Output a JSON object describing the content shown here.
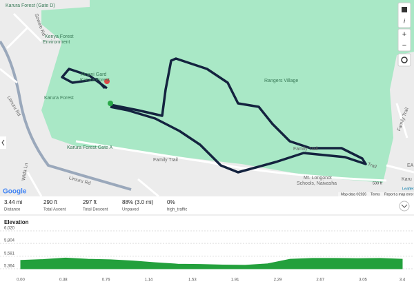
{
  "map": {
    "labels": [
      "Karura Forest (Gate D)",
      "Kenya Forest",
      "Environment",
      "Amani Gard",
      "Karura Forest",
      "Karura Forest",
      "Rangers Village",
      "Karura Forest Gate A",
      "Family Trail",
      "Family Trail",
      "Family Trail",
      "Mt. Longonot",
      "Schools, Naivasha",
      "Limuru Rd",
      "Limuru Rd",
      "Sowelo Rd",
      "Wida Ln",
      "Trail",
      "EA",
      "Karu"
    ],
    "controls": [
      "i",
      "+",
      "−"
    ],
    "google": "Google",
    "attribution": [
      "Map data ©2026",
      "Terms",
      "Report a map error"
    ],
    "scale": "500 ft",
    "leaflet": "Leaflet"
  },
  "stats": [
    {
      "value": "3.44 mi",
      "label": "Distance"
    },
    {
      "value": "290 ft",
      "label": "Total Ascent"
    },
    {
      "value": "297 ft",
      "label": "Total Descent"
    },
    {
      "value": "88% (3.0 mi)",
      "label": "Unpaved"
    },
    {
      "value": "0%",
      "label": "high_traffic"
    }
  ],
  "chart_data": {
    "type": "area",
    "title": "Elevation",
    "x": [
      0,
      0.2,
      0.4,
      0.6,
      0.8,
      1.0,
      1.2,
      1.4,
      1.6,
      1.8,
      2.0,
      2.2,
      2.4,
      2.6,
      2.8,
      3.0,
      3.2,
      3.4
    ],
    "values": [
      5510,
      5525,
      5550,
      5530,
      5520,
      5500,
      5470,
      5445,
      5440,
      5430,
      5425,
      5450,
      5530,
      5545,
      5545,
      5540,
      5545,
      5530
    ],
    "color": "#23a03c",
    "xlim": [
      0,
      3.4
    ],
    "xticks": [
      {
        "value": 0,
        "label": "0.00"
      },
      0.38,
      0.76,
      1.14,
      1.53,
      1.91,
      2.29,
      2.67,
      3.05,
      3.4
    ],
    "ylim": [
      5364,
      6020
    ],
    "yticks": [
      {
        "value": 5364,
        "label": "5,364"
      },
      {
        "value": 5581,
        "label": "5,581"
      },
      {
        "value": 5804,
        "label": "5,804"
      },
      {
        "value": 6020,
        "label": "6,020"
      }
    ],
    "grid": true
  }
}
